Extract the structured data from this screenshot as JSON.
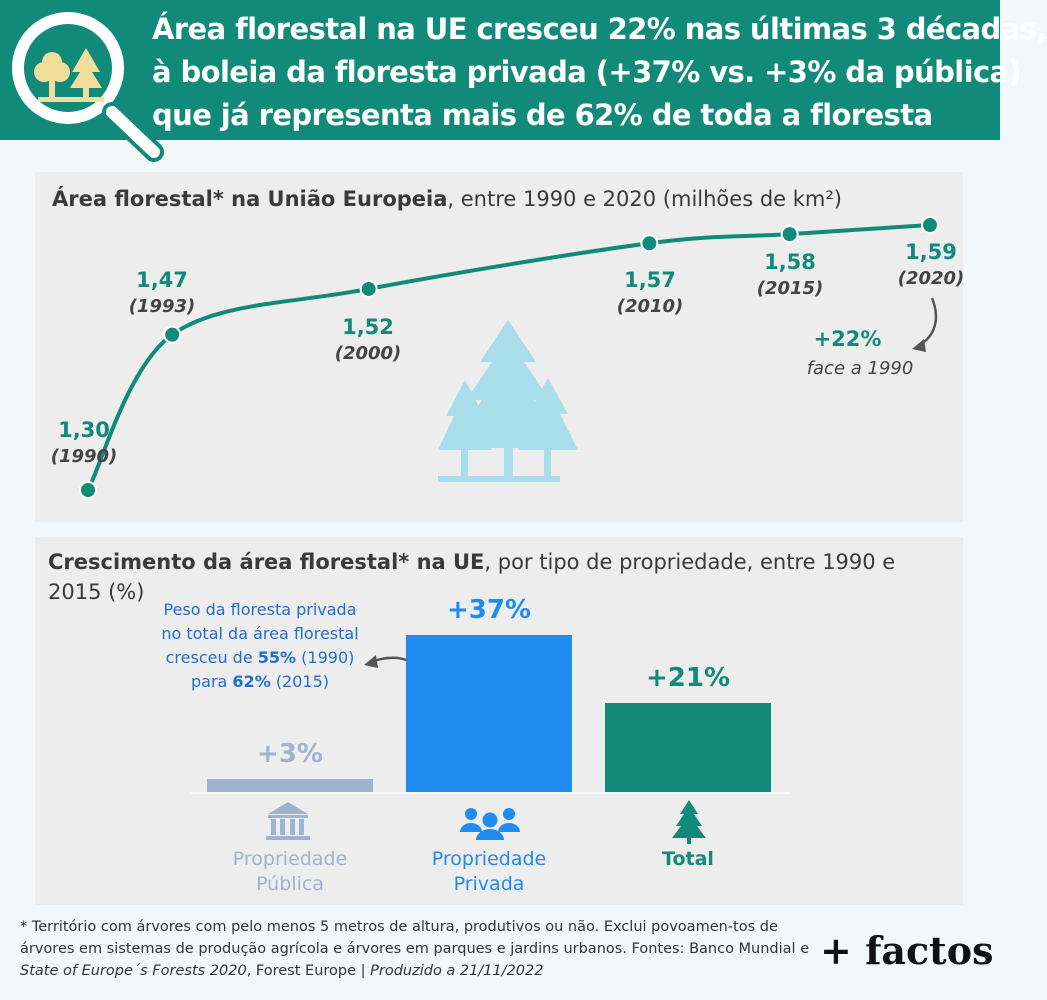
{
  "header": {
    "lines": [
      "Área florestal na UE cresceu 22% nas últimas 3 décadas,",
      "à boleia da floresta privada (+37% vs. +3% da pública)",
      "que já representa mais de 62% de toda a floresta"
    ],
    "icon": "magnifier-trees-icon"
  },
  "colors": {
    "teal": "#128a7a",
    "blue": "#1f8cf0",
    "grey_blue": "#9fb3cf",
    "light_tree": "#a9dde9"
  },
  "chart_data": [
    {
      "type": "line",
      "title_bold": "Área florestal* na União Europeia",
      "title_rest": ", entre 1990 e 2020 (milhões de km²)",
      "x": [
        1990,
        1993,
        2000,
        2010,
        2015,
        2020
      ],
      "values": [
        1.3,
        1.47,
        1.52,
        1.57,
        1.58,
        1.59
      ],
      "value_labels": [
        "1,30",
        "1,47",
        "1,52",
        "1,57",
        "1,58",
        "1,59"
      ],
      "year_labels": [
        "(1990)",
        "(1993)",
        "(2000)",
        "(2010)",
        "(2015)",
        "(2020)"
      ],
      "annotation": {
        "value": "+22%",
        "text": "face a 1990"
      },
      "grid": false
    },
    {
      "type": "bar",
      "title_bold": "Crescimento da área florestal* na UE",
      "title_rest": ", por tipo de propriedade, entre 1990 e 2015 (%)",
      "categories": [
        {
          "line1": "Propriedade",
          "line2": "Pública",
          "icon": "building-icon"
        },
        {
          "line1": "Propriedade",
          "line2": "Privada",
          "icon": "people-icon"
        },
        {
          "line1": "Total",
          "line2": "",
          "icon": "pine-tree-icon"
        }
      ],
      "values": [
        3,
        37,
        21
      ],
      "value_labels": [
        "+3%",
        "+37%",
        "+21%"
      ],
      "annotation": {
        "t1": "Peso da floresta privada no total da área florestal cresceu de",
        "v1": "55%",
        "t2": "(1990) para",
        "v2": "62%",
        "t3": "(2015)"
      }
    }
  ],
  "footer": {
    "text1": "* Território com árvores com pelo menos 5 metros de altura, produtivos ou não. Exclui povoamen-tos de árvores em sistemas de produção agrícola e árvores em parques e jardins urbanos. Fontes: Banco Mundial e",
    "source_italic": "State of Europe´s Forests 2020",
    "text2": ", Forest Europe |",
    "produced": "Produzido a 21/11/2022",
    "brand": "+ factos"
  }
}
